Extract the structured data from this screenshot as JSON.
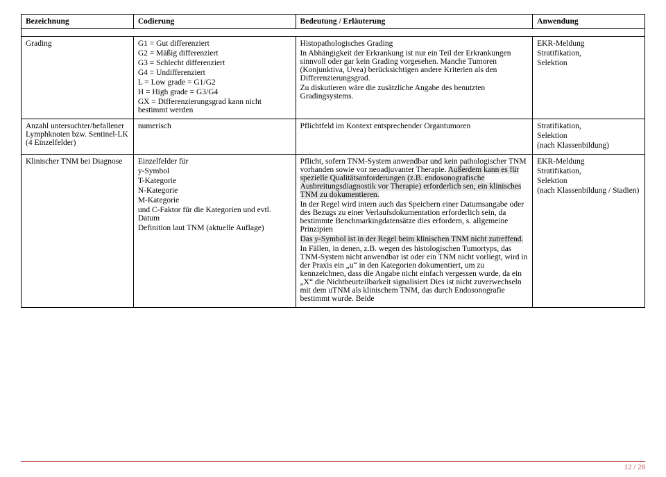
{
  "header": {
    "bezeichnung": "Bezeichnung",
    "codierung": "Codierung",
    "bedeutung": "Bedeutung / Erläuterung",
    "anwendung": "Anwendung"
  },
  "rows": {
    "r1": {
      "bez": "Grading",
      "cod_l1": "G1 = Gut differenziert",
      "cod_l2": "G2 = Mäßig differenziert",
      "cod_l3": "G3 = Schlecht differenziert",
      "cod_l4": "G4 = Undifferenziert",
      "cod_l5": "L = Low grade = G1/G2",
      "cod_l6": "H = High grade = G3/G4",
      "cod_l7": "GX = Differenzierungsgrad kann nicht bestimmt werden",
      "bed_l1": "Histopathologisches Grading",
      "bed_l2": "In Abhängigkeit der Erkrankung ist nur ein Teil der Erkrankungen sinnvoll oder gar kein Grading vorgesehen. Manche Tumoren (Konjunktiva, Uvea) berücksichtigen andere Kriterien als den Differenzierungsgrad.",
      "bed_l3": "Zu diskutieren wäre die zusätzliche Angabe des benutzten Gradingsystems.",
      "anw_l1": "EKR-Meldung",
      "anw_l2": "Stratifikation,",
      "anw_l3": "Selektion"
    },
    "r2": {
      "bez": "Anzahl untersuchter/befallener Lymphknoten bzw. Sentinel-LK (4 Einzelfelder)",
      "cod": "numerisch",
      "bed": "Pflichtfeld im Kontext entsprechender Organtumoren",
      "anw_l1": "Stratifikation,",
      "anw_l2": "Selektion",
      "anw_l3": "(nach Klassenbildung)"
    },
    "r3": {
      "bez": "Klinischer TNM bei Diagnose",
      "cod_l1": "Einzelfelder für",
      "cod_l2": "y-Symbol",
      "cod_l3": "T-Kategorie",
      "cod_l4": "N-Kategorie",
      "cod_l5": "M-Kategorie",
      "cod_l6": "und C-Faktor für die Kategorien und evtl. Datum",
      "cod_l7": "Definition laut TNM (aktuelle Auflage)",
      "bed_p1a": "Pflicht, sofern TNM-System anwendbar und kein pathologischer TNM vorhanden sowie vor neoadjuvanter Therapie. ",
      "bed_p1_hl": "Außerdem kann es für spezielle Qualitätsanforderungen (z.B. endosonografische Ausbreitungsdiagnostik vor Therapie) erforderlich sen, ein klinisches TNM zu dokumentieren.",
      "bed_p2": "In der Regel wird intern auch das Speichern einer Datumsangabe oder des Bezugs zu einer Verlaufsdokumentation erforderlich sein, da bestimmte Benchmarkingdatensätze dies erfordern, s. allgemeine Prinzipien",
      "bed_p3_hl": "Das y-Symbol ist in der Regel beim klinischen TNM nicht zutreffend.",
      "bed_p4": "In Fällen, in denen, z.B. wegen des histologischen Tumortyps, das TNM-System nicht anwendbar ist oder ein TNM nicht vorliegt, wird in der Praxis ein „u“ in den Kategorien dokumentiert, um zu kennzeichnen, dass die Angabe nicht einfach vergessen wurde, da ein „X“ die Nichtbeurteilbarkeit signalisiert Dies ist nicht zuverwechseln mit dem uTNM als klinischem TNM, das durch Endosonografie bestimmt wurde. Beide",
      "anw_l1": "EKR-Meldung",
      "anw_l2": "Stratifikation,",
      "anw_l3": "Selektion",
      "anw_l4": "(nach Klassenbildung / Stadien)"
    }
  },
  "footer": {
    "page": "12",
    "sep": " / ",
    "total": "28"
  }
}
